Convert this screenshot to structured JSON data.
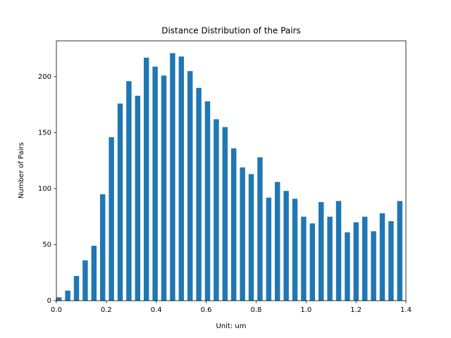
{
  "chart_data": {
    "type": "bar",
    "title": "Distance Distribution of the Pairs",
    "x_label": "Unit: um",
    "y_label": "Number of Pairs",
    "x": [
      0,
      0.035,
      0.07,
      0.105,
      0.14,
      0.175,
      0.21,
      0.245,
      0.28,
      0.315,
      0.35,
      0.385,
      0.42,
      0.455,
      0.49,
      0.525,
      0.56,
      0.595,
      0.63,
      0.665,
      0.7,
      0.735,
      0.77,
      0.805,
      0.84,
      0.875,
      0.91,
      0.945,
      0.98,
      1.015,
      1.05,
      1.085,
      1.12,
      1.155,
      1.19,
      1.225,
      1.26,
      1.295,
      1.33,
      1.365
    ],
    "values": [
      3,
      9,
      22,
      36,
      49,
      95,
      146,
      176,
      196,
      183,
      217,
      209,
      201,
      221,
      218,
      205,
      190,
      178,
      162,
      155,
      136,
      119,
      113,
      128,
      92,
      106,
      98,
      91,
      75,
      69,
      88,
      75,
      89,
      61,
      70,
      75,
      62,
      78,
      71,
      89
    ],
    "color": "#1f77b4",
    "xlim": [
      0,
      1.4
    ],
    "xticks": [
      {
        "value": 0,
        "label": "0.0"
      },
      0.2,
      0.4,
      0.6,
      0.8,
      {
        "value": 1,
        "label": "1.0"
      },
      1.2,
      1.4
    ],
    "ylim": [
      0,
      232
    ],
    "yticks": [
      0,
      50,
      100,
      150,
      200
    ],
    "grid": false
  }
}
